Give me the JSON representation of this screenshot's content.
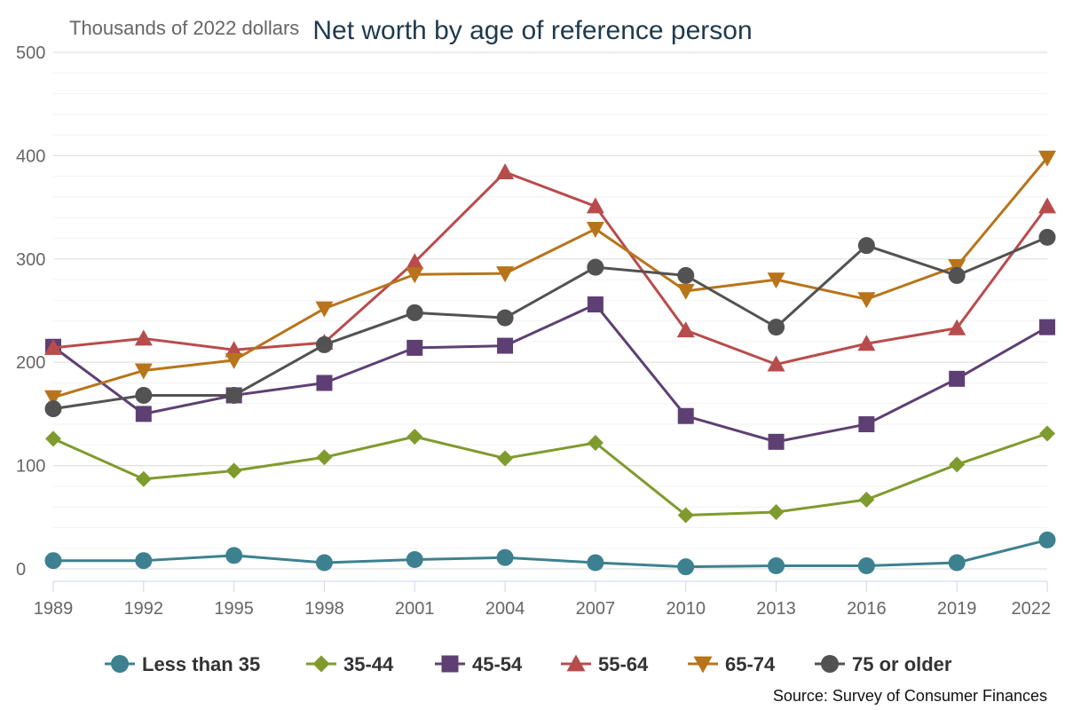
{
  "chart_data": {
    "type": "line",
    "title": "Net worth by age of reference person",
    "ylabel": "Thousands of 2022 dollars",
    "xlabel": "",
    "source": "Source: Survey of Consumer Finances",
    "categories": [
      "1989",
      "1992",
      "1995",
      "1998",
      "2001",
      "2004",
      "2007",
      "2010",
      "2013",
      "2016",
      "2019",
      "2022"
    ],
    "ylim": [
      0,
      500
    ],
    "yticks": [
      0,
      100,
      200,
      300,
      400,
      500
    ],
    "grid": true,
    "legend_position": "bottom",
    "series": [
      {
        "name": "Less than 35",
        "color": "#3d8190",
        "marker": "circle",
        "values": [
          8,
          8,
          13,
          6,
          9,
          11,
          6,
          2,
          3,
          3,
          6,
          28
        ]
      },
      {
        "name": "35-44",
        "color": "#7f9b2d",
        "marker": "diamond",
        "values": [
          126,
          87,
          95,
          108,
          128,
          107,
          122,
          52,
          55,
          67,
          101,
          131
        ]
      },
      {
        "name": "45-54",
        "color": "#5e3f73",
        "marker": "square",
        "values": [
          215,
          150,
          168,
          180,
          214,
          216,
          256,
          148,
          123,
          140,
          184,
          234
        ]
      },
      {
        "name": "55-64",
        "color": "#b84c4c",
        "marker": "triangle-up",
        "values": [
          214,
          223,
          212,
          219,
          297,
          384,
          351,
          231,
          198,
          218,
          233,
          351
        ]
      },
      {
        "name": "65-74",
        "color": "#b8741a",
        "marker": "triangle-down",
        "values": [
          166,
          192,
          202,
          252,
          285,
          286,
          329,
          269,
          280,
          261,
          293,
          398
        ]
      },
      {
        "name": "75 or older",
        "color": "#525252",
        "marker": "circle",
        "values": [
          155,
          168,
          168,
          217,
          248,
          243,
          292,
          284,
          234,
          313,
          284,
          321
        ]
      }
    ]
  }
}
